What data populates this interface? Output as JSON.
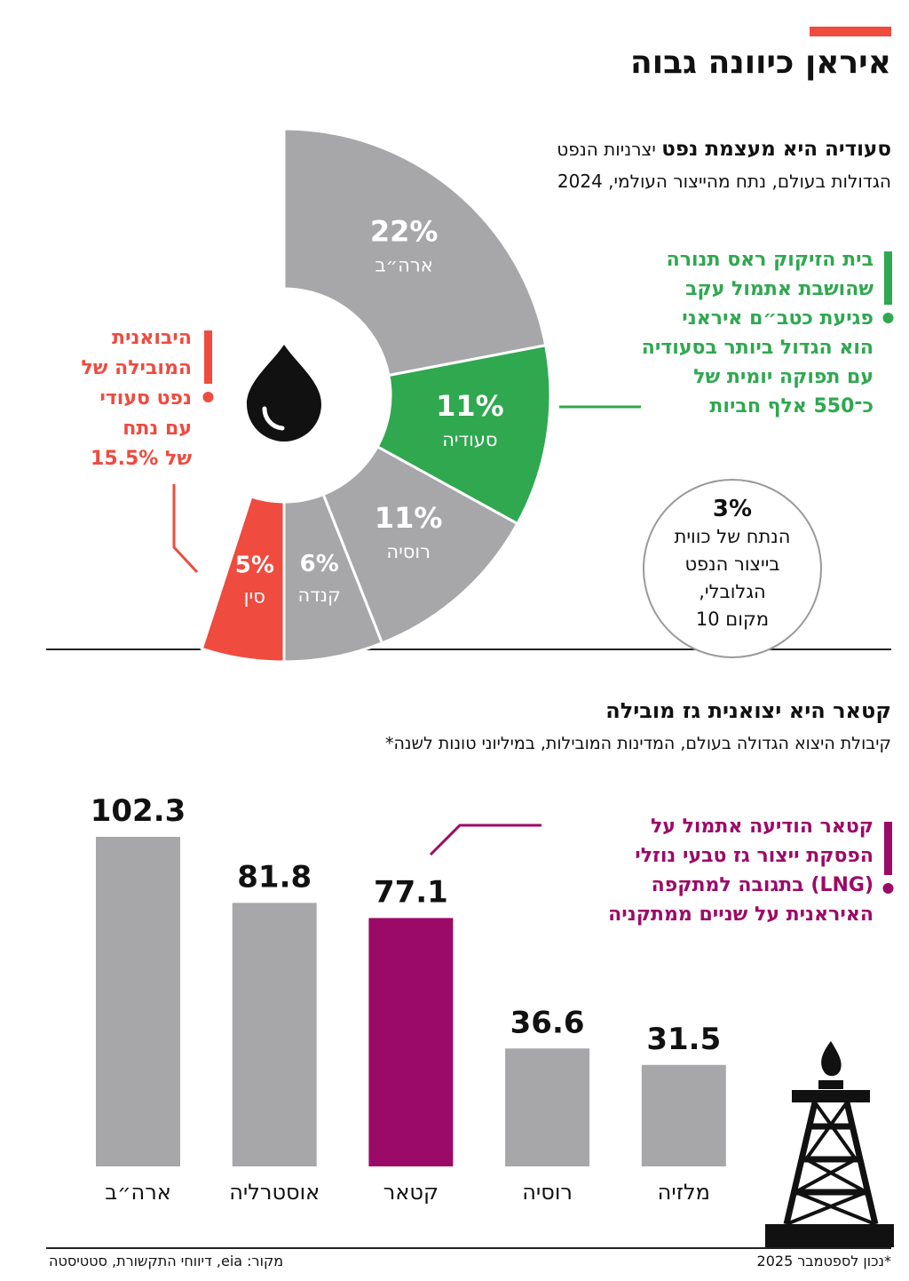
{
  "header": {
    "title": "איראן כיוונה גבוה"
  },
  "chart_data": [
    {
      "type": "pie",
      "title": "סעודיה היא מעצמת נפט",
      "subtitle": "יצרניות הנפט הגדולות בעולם, נתח מהייצור העולמי, 2024",
      "categories": [
        "ארה״ב",
        "סעודיה",
        "רוסיה",
        "קנדה",
        "סין"
      ],
      "values": [
        22,
        11,
        11,
        6,
        5
      ],
      "value_labels": [
        "22%",
        "11%",
        "11%",
        "6%",
        "5%"
      ],
      "colors": [
        "#a7a7a9",
        "#2fa84f",
        "#a7a7a9",
        "#a7a7a9",
        "#ef4b3f"
      ]
    },
    {
      "type": "bar",
      "title": "קטאר היא יצואנית גז מובילה",
      "subtitle": "קיבולת היצוא הגדולה בעולם, המדינות המובילות, במיליוני טונות לשנה*",
      "categories": [
        "ארה״ב",
        "אוסטרליה",
        "קטאר",
        "רוסיה",
        "מלזיה"
      ],
      "values": [
        102.3,
        81.8,
        77.1,
        36.6,
        31.5
      ],
      "colors": [
        "#a7a7a9",
        "#a7a7a9",
        "#9c0a67",
        "#a7a7a9",
        "#a7a7a9"
      ]
    }
  ],
  "annotations": {
    "refinery": [
      "בית הזיקוק ראס תנורה",
      "שהושבת אתמול עקב",
      "פגיעת כטב״ם איראני",
      "הוא הגדול ביותר בסעודיה",
      "עם תפוקה יומית של",
      "כ־550 אלף חביות"
    ],
    "china": [
      "היבואנית",
      "המובילה של",
      "נפט סעודי",
      "עם נתח",
      "של 15.5%"
    ],
    "kuwait": [
      "3%",
      "הנתח של כווית",
      "בייצור הנפט",
      "הגלובלי,",
      "מקום 10"
    ],
    "qatar": [
      "קטאר הודיעה אתמול על",
      "הפסקת ייצור גז טבעי נוזלי",
      "(LNG) בתגובה למתקפה",
      "האיראנית על שניים ממתקניה"
    ]
  },
  "footer": {
    "source": "מקור: eia, דיווחי התקשורת, סטטיסטה",
    "note": "*נכון לספטמבר 2025"
  }
}
